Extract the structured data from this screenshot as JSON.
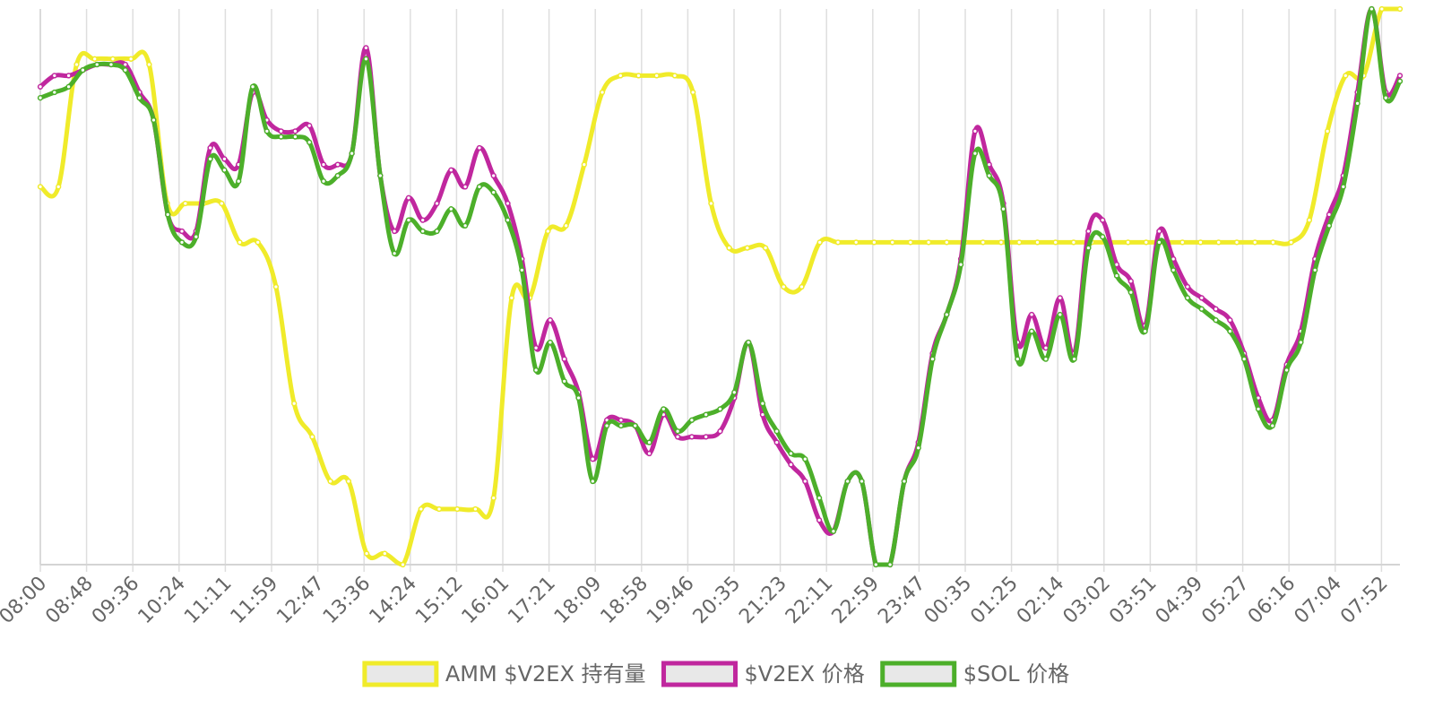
{
  "chart_data": {
    "type": "line",
    "title": "",
    "xlabel": "",
    "ylabel": "",
    "grid": "vertical",
    "legend_position": "bottom",
    "x_ticks": [
      "08:00",
      "08:48",
      "09:36",
      "10:24",
      "11:11",
      "11:59",
      "12:47",
      "13:36",
      "14:24",
      "15:12",
      "16:01",
      "17:21",
      "18:09",
      "18:58",
      "19:46",
      "20:35",
      "21:23",
      "22:11",
      "22:59",
      "23:47",
      "00:35",
      "01:25",
      "02:14",
      "03:02",
      "03:51",
      "04:39",
      "05:27",
      "06:16",
      "07:04",
      "07:52"
    ],
    "y_range": [
      0,
      100
    ],
    "series": [
      {
        "name": "AMM $V2EX 持有量",
        "color": "#f0eb2a",
        "values": [
          68,
          68,
          90,
          91,
          91,
          91,
          90,
          65,
          65,
          65,
          65,
          58,
          58,
          50,
          29,
          23,
          15,
          15,
          2,
          2,
          0,
          10,
          10,
          10,
          10,
          12,
          48,
          48,
          60,
          61,
          72,
          85,
          88,
          88,
          88,
          88,
          85,
          65,
          57,
          57,
          57,
          50,
          50,
          58,
          58,
          58,
          58,
          58,
          58,
          58,
          58,
          58,
          58,
          58,
          58,
          58,
          58,
          58,
          58,
          58,
          58,
          58,
          58,
          58,
          58,
          58,
          58,
          58,
          58,
          58,
          62,
          78,
          88,
          88,
          100,
          100
        ]
      },
      {
        "name": "$V2EX 价格",
        "color": "#c0279e",
        "values": [
          86,
          88,
          88,
          89,
          90,
          90,
          90,
          85,
          80,
          63,
          60,
          60,
          75,
          73,
          72,
          85,
          80,
          78,
          78,
          79,
          72,
          72,
          74,
          93,
          70,
          60,
          66,
          62,
          65,
          71,
          68,
          75,
          70,
          65,
          55,
          39,
          44,
          37,
          31,
          19,
          26,
          26,
          25,
          20,
          27,
          23,
          23,
          23,
          24,
          30,
          40,
          27,
          22,
          18,
          15,
          8,
          6,
          15,
          15,
          0,
          0,
          15,
          22,
          38,
          45,
          55,
          78,
          72,
          65,
          40,
          45,
          39,
          48,
          38,
          60,
          62,
          54,
          51,
          43,
          60,
          55,
          50,
          48,
          46,
          44,
          38,
          30,
          26,
          36,
          42,
          55,
          63,
          70,
          85,
          100,
          85,
          88
        ]
      },
      {
        "name": "$SOL 价格",
        "color": "#4caf2a",
        "values": [
          84,
          85,
          86,
          89,
          90,
          90,
          89,
          84,
          80,
          63,
          58,
          59,
          73,
          71,
          69,
          86,
          78,
          77,
          77,
          76,
          69,
          70,
          74,
          91,
          70,
          56,
          62,
          60,
          60,
          64,
          61,
          68,
          67,
          62,
          53,
          35,
          40,
          33,
          30,
          15,
          25,
          25,
          25,
          22,
          28,
          24,
          26,
          27,
          28,
          31,
          40,
          29,
          24,
          20,
          19,
          12,
          6,
          15,
          15,
          0,
          0,
          15,
          21,
          37,
          45,
          54,
          74,
          70,
          64,
          37,
          42,
          37,
          45,
          37,
          57,
          59,
          52,
          49,
          42,
          58,
          53,
          48,
          46,
          44,
          42,
          37,
          28,
          25,
          35,
          40,
          53,
          61,
          68,
          83,
          100,
          84,
          87
        ]
      }
    ]
  }
}
